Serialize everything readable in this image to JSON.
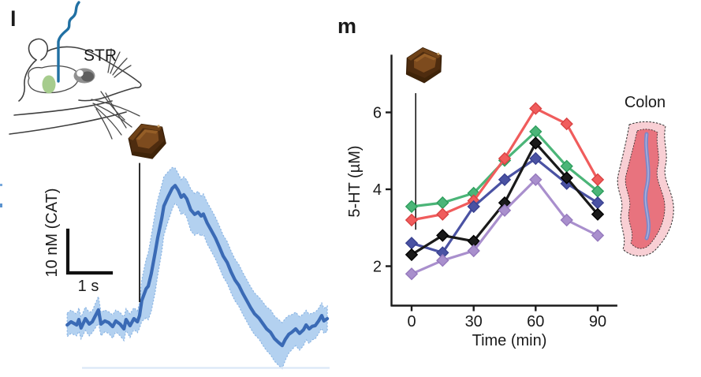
{
  "panel_l": {
    "label": "l",
    "region_label": "STR",
    "icons": [
      "mouse-head-line-drawing",
      "fiber-optic-cannula",
      "striatum-highlight",
      "chocolate-icon"
    ]
  },
  "panel_m": {
    "label": "m",
    "tissue_label": "Colon",
    "icons": [
      "chocolate-icon",
      "colon-illustration"
    ]
  },
  "colors": {
    "trace_line": "#3a6ab5",
    "trace_band": "#b3d1f0",
    "trace_band_edge": "#8ab4e3",
    "axis": "#1a1a1a",
    "event_line": "#1a1a1a"
  },
  "chart_data": [
    {
      "type": "line",
      "x_unit": "s",
      "y_unit": "nM (CAT)",
      "scale_bar": {
        "y_label": "10 nM (CAT)",
        "y_value_nM": 10,
        "x_label": "1 s",
        "x_value_s": 1
      },
      "event": {
        "icon": "chocolate-icon",
        "time_s": 0,
        "line_from_nM": 38,
        "line_to_nM": 4.7
      },
      "points": [
        [
          -1.67,
          -0.75,
          2.8
        ],
        [
          -1.58,
          0,
          2.8
        ],
        [
          -1.45,
          -0.75,
          2.6
        ],
        [
          -1.4,
          0.55,
          2.8
        ],
        [
          -1.35,
          -1.5,
          2.6
        ],
        [
          -1.25,
          0.75,
          2.8
        ],
        [
          -1.16,
          -0.55,
          2.8
        ],
        [
          -1.09,
          0,
          2.6
        ],
        [
          -0.95,
          2.85,
          3.2
        ],
        [
          -0.89,
          -0.55,
          2.8
        ],
        [
          -0.8,
          0.2,
          2.6
        ],
        [
          -0.71,
          -0.2,
          2.6
        ],
        [
          -0.62,
          -1.15,
          2.8
        ],
        [
          -0.55,
          0.2,
          2.6
        ],
        [
          -0.45,
          -0.55,
          2.8
        ],
        [
          -0.36,
          -1.7,
          2.8
        ],
        [
          -0.31,
          0.55,
          2.6
        ],
        [
          -0.22,
          -0.95,
          2.8
        ],
        [
          -0.13,
          0.75,
          2.6
        ],
        [
          -0.05,
          0,
          2.6
        ],
        [
          0,
          1.5,
          3
        ],
        [
          0.05,
          5.1,
          5
        ],
        [
          0.15,
          7.9,
          7
        ],
        [
          0.2,
          8.5,
          8
        ],
        [
          0.27,
          11.5,
          9
        ],
        [
          0.36,
          16.6,
          9.5
        ],
        [
          0.42,
          20.2,
          9
        ],
        [
          0.51,
          24.7,
          8
        ],
        [
          0.56,
          27.7,
          7
        ],
        [
          0.65,
          29.8,
          6
        ],
        [
          0.75,
          31.9,
          5
        ],
        [
          0.82,
          32.6,
          4.2
        ],
        [
          0.89,
          31.5,
          4
        ],
        [
          0.96,
          29.8,
          4.2
        ],
        [
          1.02,
          30.4,
          4.3
        ],
        [
          1.09,
          29.4,
          4.5
        ],
        [
          1.18,
          26.8,
          5
        ],
        [
          1.27,
          25.7,
          5
        ],
        [
          1.35,
          26.2,
          5
        ],
        [
          1.42,
          25.3,
          4.8
        ],
        [
          1.47,
          25.8,
          4.8
        ],
        [
          1.56,
          23.6,
          5
        ],
        [
          1.65,
          21.9,
          5
        ],
        [
          1.75,
          20,
          5
        ],
        [
          1.84,
          17.9,
          5
        ],
        [
          1.93,
          15.7,
          5
        ],
        [
          2.02,
          14.2,
          5
        ],
        [
          2.11,
          11.9,
          5
        ],
        [
          2.2,
          10,
          5
        ],
        [
          2.29,
          8.7,
          5
        ],
        [
          2.38,
          6.8,
          5
        ],
        [
          2.47,
          5.1,
          5
        ],
        [
          2.56,
          3.4,
          5
        ],
        [
          2.65,
          1.9,
          5
        ],
        [
          2.75,
          0.9,
          5
        ],
        [
          2.84,
          -0.4,
          5.2
        ],
        [
          2.93,
          -1.7,
          5.2
        ],
        [
          3.02,
          -2.5,
          5.4
        ],
        [
          3.11,
          -4,
          5.4
        ],
        [
          3.2,
          -4.9,
          5.5
        ],
        [
          3.29,
          -5.7,
          5.5
        ],
        [
          3.36,
          -4.2,
          5
        ],
        [
          3.44,
          -3,
          4.5
        ],
        [
          3.51,
          -2.5,
          4.2
        ],
        [
          3.6,
          -1.7,
          4
        ],
        [
          3.69,
          -2.8,
          4
        ],
        [
          3.78,
          -1.9,
          3.8
        ],
        [
          3.84,
          -0.75,
          3.5
        ],
        [
          3.91,
          -1.7,
          3.5
        ],
        [
          3.98,
          -1.1,
          3.2
        ],
        [
          4.05,
          -0.9,
          3.2
        ],
        [
          4.13,
          0.2,
          3
        ],
        [
          4.2,
          1.5,
          3
        ],
        [
          4.25,
          0.2,
          3
        ],
        [
          4.33,
          0.75,
          3
        ]
      ]
    },
    {
      "type": "line",
      "xlabel": "Time (min)",
      "ylabel": "5-HT (µM)",
      "x": [
        0,
        15,
        30,
        45,
        60,
        75,
        90
      ],
      "xticks": [
        0,
        30,
        60,
        90
      ],
      "yticks": [
        2,
        4,
        6
      ],
      "xlim": [
        -10,
        99.5
      ],
      "ylim": [
        0.95,
        7.5
      ],
      "grid": false,
      "legend": "none",
      "marker": "diamond",
      "event": {
        "icon": "chocolate-icon",
        "time_min": 0,
        "line_time_min": 2,
        "line_from_uM": 6.5,
        "line_to_uM": 2.95
      },
      "series": [
        {
          "name": "series-green",
          "color": "#4bb578",
          "edge": "#2e9e5d",
          "values": [
            3.55,
            3.65,
            3.9,
            4.75,
            5.5,
            4.6,
            3.95
          ]
        },
        {
          "name": "series-red",
          "color": "#f05c5c",
          "edge": "#da4343",
          "values": [
            3.2,
            3.35,
            3.7,
            4.8,
            6.1,
            5.7,
            4.25
          ]
        },
        {
          "name": "series-blue",
          "color": "#4a52a3",
          "edge": "#3a4291",
          "values": [
            2.6,
            2.35,
            3.55,
            4.25,
            4.8,
            4.15,
            3.65
          ]
        },
        {
          "name": "series-black",
          "color": "#1a1a1a",
          "edge": "#000000",
          "values": [
            2.3,
            2.8,
            2.65,
            3.65,
            5.2,
            4.3,
            3.35
          ]
        },
        {
          "name": "series-purple",
          "color": "#a98fcd",
          "edge": "#9579bd",
          "values": [
            1.8,
            2.15,
            2.4,
            3.45,
            4.25,
            3.2,
            2.8
          ]
        }
      ]
    }
  ]
}
